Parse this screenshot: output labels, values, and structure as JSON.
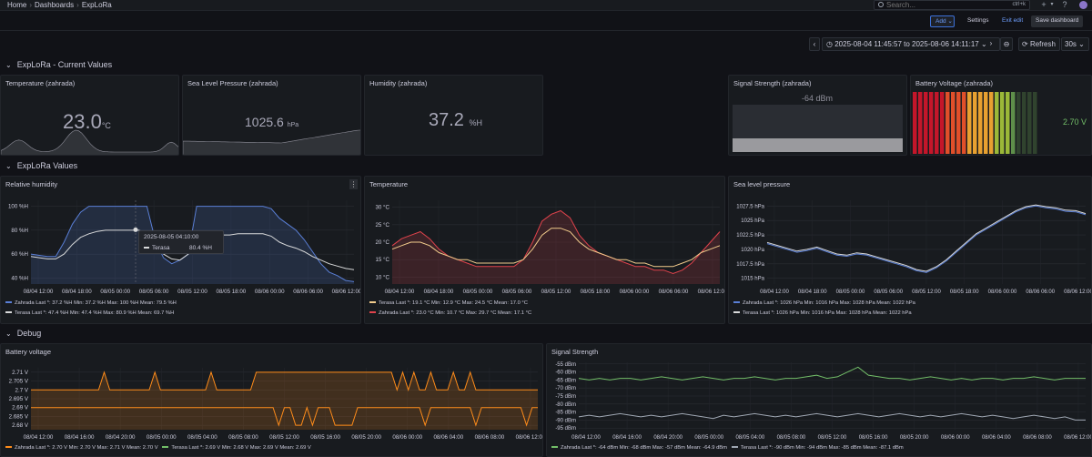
{
  "breadcrumb": {
    "home": "Home",
    "dashboards": "Dashboards",
    "current": "ExpLoRa"
  },
  "search": {
    "placeholder": "Search...",
    "shortcut": "ctrl+k"
  },
  "toolbar": {
    "add": "Add",
    "settings": "Settings",
    "exit_edit": "Exit edit",
    "save": "Save dashboard"
  },
  "timepicker": {
    "range": "2025-08-04 11:45:57 to 2025-08-06 14:11:17",
    "refresh": "Refresh",
    "interval": "30s"
  },
  "sections": {
    "current": "ExpLoRa - Current Values",
    "values": "ExpLoRa Values",
    "debug": "Debug"
  },
  "stats": {
    "temperature": {
      "title": "Temperature (zahrada)",
      "value": "23.0",
      "unit": "°C"
    },
    "pressure": {
      "title": "Sea Level Pressure (zahrada)",
      "value": "1025.6",
      "unit": "hPa"
    },
    "humidity": {
      "title": "Humidity (zahrada)",
      "value": "37.2",
      "unit": "%H"
    },
    "signal": {
      "title": "Signal Strength (zahrada)",
      "value": "-64 dBm",
      "min": -120,
      "max": 0,
      "reading": -64
    },
    "battery": {
      "title": "Battery Voltage (zahrada)",
      "value": "2.70 V",
      "min": 0,
      "max": 3.3,
      "reading": 2.7
    }
  },
  "colors": {
    "zahrada_blue": "#5a7fd6",
    "terasa_white": "#d8d9da",
    "yellow": "#f2cc8c",
    "red": "#e0434c",
    "orange": "#ff8c1a",
    "green": "#73bf69",
    "gray": "#9fa7b3"
  },
  "panels": {
    "humidity": {
      "title": "Relative humidity",
      "tooltip": {
        "time": "2025-08-05 04:10:00",
        "series": "Terasa",
        "value": "80.4 %H"
      },
      "legend": [
        "Zahrada  Last *: 37.2 %H  Min: 37.2 %H  Max: 100 %H  Mean: 79.5 %H",
        "Terasa  Last *: 47.4 %H  Min: 47.4 %H  Max: 80.9 %H  Mean: 69.7 %H"
      ]
    },
    "temperature": {
      "title": "Temperature",
      "legend": [
        "Terasa  Last *: 19.1 °C  Min: 12.9 °C  Max: 24.5 °C  Mean: 17.0 °C",
        "Zahrada  Last *: 23.0 °C  Min: 10.7 °C  Max: 29.7 °C  Mean: 17.1 °C"
      ]
    },
    "pressure": {
      "title": "Sea level pressure",
      "legend": [
        "Zahrada  Last *: 1026 hPa  Min: 1016 hPa  Max: 1028 hPa  Mean: 1022 hPa",
        "Terasa  Last *: 1026 hPa  Min: 1016 hPa  Max: 1028 hPa  Mean: 1022 hPa"
      ]
    },
    "battery": {
      "title": "Battery voltage",
      "legend": "Zahrada  Last *: 2.70 V  Min: 2.70 V  Max: 2.71 V  Mean: 2.70 V",
      "legend2": "Terasa  Last *: 2.69 V  Min: 2.68 V  Max: 2.69 V  Mean: 2.69 V"
    },
    "signal": {
      "title": "Signal Strength",
      "legend": "Zahrada  Last *: -64 dBm  Min: -68 dBm  Max: -57 dBm  Mean: -64.9 dBm",
      "legend2": "Terasa  Last *: -90 dBm  Min: -94 dBm  Max: -85 dBm  Mean: -87.1 dBm"
    }
  },
  "chart_data": [
    {
      "id": "humidity",
      "type": "line",
      "title": "Relative humidity",
      "x_ticks": [
        "08/04 12:00",
        "08/04 18:00",
        "08/05 00:00",
        "08/05 06:00",
        "08/05 12:00",
        "08/05 18:00",
        "08/06 00:00",
        "08/06 06:00",
        "08/06 12:00"
      ],
      "y_ticks": [
        "40 %H",
        "60 %H",
        "80 %H",
        "100 %H"
      ],
      "ylim": [
        35,
        105
      ],
      "series": [
        {
          "name": "Zahrada",
          "color": "#5a7fd6",
          "fill": true,
          "values": [
            60,
            59,
            58,
            58,
            70,
            85,
            95,
            100,
            100,
            100,
            100,
            100,
            100,
            100,
            100,
            72,
            57,
            52,
            55,
            60,
            100,
            100,
            100,
            100,
            100,
            100,
            100,
            100,
            100,
            98,
            90,
            85,
            80,
            72,
            62,
            52,
            45,
            42,
            38,
            37
          ]
        },
        {
          "name": "Terasa",
          "color": "#d8d9da",
          "fill": false,
          "values": [
            58,
            57,
            56,
            56,
            60,
            68,
            74,
            77,
            79,
            80,
            80,
            80,
            80,
            80,
            78,
            68,
            60,
            56,
            55,
            60,
            72,
            75,
            76,
            76,
            76,
            77,
            77,
            77,
            77,
            75,
            70,
            67,
            65,
            62,
            58,
            55,
            52,
            50,
            48,
            47
          ]
        }
      ]
    },
    {
      "id": "temperature",
      "type": "line",
      "title": "Temperature",
      "x_ticks": [
        "08/04 12:00",
        "08/04 18:00",
        "08/05 00:00",
        "08/05 06:00",
        "08/05 12:00",
        "08/05 18:00",
        "08/06 00:00",
        "08/06 06:00",
        "08/06 12:00"
      ],
      "y_ticks": [
        "10 °C",
        "15 °C",
        "20 °C",
        "25 °C",
        "30 °C"
      ],
      "ylim": [
        8,
        32
      ],
      "series": [
        {
          "name": "Zahrada",
          "color": "#e0434c",
          "fill": true,
          "values": [
            19,
            21,
            22,
            23,
            21,
            18,
            16,
            15,
            14,
            13,
            13,
            13,
            13,
            13,
            15,
            20,
            26,
            28,
            29,
            27,
            22,
            19,
            17,
            16,
            15,
            14,
            13,
            13,
            12,
            12,
            11,
            12,
            14,
            17,
            20,
            23
          ]
        },
        {
          "name": "Terasa",
          "color": "#f2cc8c",
          "fill": false,
          "values": [
            18,
            19,
            20,
            20,
            19,
            17,
            16,
            15,
            15,
            14,
            14,
            14,
            14,
            14,
            15,
            18,
            22,
            24,
            24,
            23,
            20,
            18,
            17,
            16,
            15,
            15,
            14,
            14,
            13,
            13,
            13,
            14,
            15,
            17,
            18,
            19
          ]
        }
      ]
    },
    {
      "id": "pressure",
      "type": "line",
      "title": "Sea level pressure",
      "x_ticks": [
        "08/04 12:00",
        "08/04 18:00",
        "08/05 00:00",
        "08/05 06:00",
        "08/05 12:00",
        "08/05 18:00",
        "08/06 00:00",
        "08/06 06:00",
        "08/06 12:00"
      ],
      "y_ticks": [
        "1015 hPa",
        "1017.5 hPa",
        "1020 hPa",
        "1022.5 hPa",
        "1025 hPa",
        "1027.5 hPa"
      ],
      "ylim": [
        1014,
        1028.5
      ],
      "series": [
        {
          "name": "Zahrada",
          "color": "#5a7fd6",
          "fill": false,
          "values": [
            1021,
            1020.5,
            1020,
            1019.5,
            1019.8,
            1020.2,
            1019.6,
            1019,
            1018.8,
            1019.2,
            1019,
            1018.5,
            1018,
            1017.5,
            1017,
            1016.3,
            1016,
            1016.8,
            1018,
            1019.5,
            1021,
            1022.5,
            1023.5,
            1024.5,
            1025.5,
            1026.5,
            1027.2,
            1027.5,
            1027.2,
            1027,
            1026.6,
            1026.5,
            1026
          ]
        },
        {
          "name": "Terasa",
          "color": "#d8d9da",
          "fill": false,
          "values": [
            1021.2,
            1020.7,
            1020.2,
            1019.7,
            1020,
            1020.4,
            1019.8,
            1019.2,
            1019,
            1019.4,
            1019.2,
            1018.7,
            1018.2,
            1017.7,
            1017.2,
            1016.5,
            1016.2,
            1017,
            1018.2,
            1019.7,
            1021.2,
            1022.7,
            1023.7,
            1024.7,
            1025.7,
            1026.7,
            1027.4,
            1027.7,
            1027.4,
            1027.2,
            1026.8,
            1026.7,
            1026.2
          ]
        }
      ]
    },
    {
      "id": "battery",
      "type": "line",
      "title": "Battery voltage",
      "x_ticks": [
        "08/04 12:00",
        "08/04 16:00",
        "08/04 20:00",
        "08/05 00:00",
        "08/05 04:00",
        "08/05 08:00",
        "08/05 12:00",
        "08/05 16:00",
        "08/05 20:00",
        "08/06 00:00",
        "08/06 04:00",
        "08/06 08:00",
        "08/06 12:00"
      ],
      "y_ticks": [
        "2.68 V",
        "2.685 V",
        "2.69 V",
        "2.695 V",
        "2.7 V",
        "2.705 V",
        "2.71 V"
      ],
      "ylim": [
        2.6775,
        2.7125
      ],
      "series": [
        {
          "name": "Zahrada",
          "color": "#ff8c1a",
          "fill": true,
          "values": [
            2.7,
            2.7,
            2.7,
            2.7,
            2.7,
            2.7,
            2.7,
            2.7,
            2.7,
            2.7,
            2.7,
            2.7,
            2.7,
            2.71,
            2.7,
            2.7,
            2.7,
            2.7,
            2.7,
            2.7,
            2.7,
            2.7,
            2.71,
            2.7,
            2.7,
            2.7,
            2.7,
            2.7,
            2.7,
            2.7,
            2.7,
            2.7,
            2.71,
            2.7,
            2.7,
            2.7,
            2.7,
            2.7,
            2.7,
            2.7,
            2.71,
            2.71,
            2.71,
            2.71,
            2.71,
            2.71,
            2.71,
            2.71,
            2.71,
            2.71,
            2.71,
            2.71,
            2.71,
            2.71,
            2.71,
            2.71,
            2.71,
            2.71,
            2.71,
            2.71,
            2.71,
            2.71,
            2.71,
            2.71,
            2.71,
            2.7,
            2.71,
            2.7,
            2.71,
            2.7,
            2.7,
            2.71,
            2.7,
            2.7,
            2.7,
            2.71,
            2.7,
            2.7,
            2.71,
            2.7,
            2.7,
            2.7,
            2.7,
            2.7,
            2.7,
            2.7,
            2.7,
            2.7,
            2.7,
            2.7,
            2.7
          ]
        },
        {
          "name": "Terasa",
          "color": "#ff8c1a",
          "fill": false,
          "values": [
            2.69,
            2.69,
            2.69,
            2.69,
            2.69,
            2.69,
            2.69,
            2.69,
            2.69,
            2.69,
            2.69,
            2.69,
            2.69,
            2.69,
            2.69,
            2.69,
            2.69,
            2.69,
            2.69,
            2.69,
            2.69,
            2.69,
            2.69,
            2.69,
            2.69,
            2.69,
            2.69,
            2.69,
            2.69,
            2.69,
            2.69,
            2.69,
            2.69,
            2.69,
            2.69,
            2.69,
            2.69,
            2.69,
            2.69,
            2.69,
            2.69,
            2.69,
            2.69,
            2.69,
            2.68,
            2.69,
            2.69,
            2.68,
            2.68,
            2.69,
            2.68,
            2.69,
            2.69,
            2.69,
            2.68,
            2.68,
            2.68,
            2.68,
            2.69,
            2.69,
            2.69,
            2.69,
            2.69,
            2.69,
            2.69,
            2.69,
            2.69,
            2.69,
            2.69,
            2.69,
            2.68,
            2.69,
            2.69,
            2.69,
            2.69,
            2.69,
            2.69,
            2.69,
            2.69,
            2.68,
            2.69,
            2.69,
            2.69,
            2.69,
            2.69,
            2.69,
            2.69,
            2.69,
            2.68,
            2.69,
            2.69
          ]
        }
      ]
    },
    {
      "id": "signal",
      "type": "line",
      "title": "Signal Strength",
      "x_ticks": [
        "08/04 12:00",
        "08/04 16:00",
        "08/04 20:00",
        "08/05 00:00",
        "08/05 04:00",
        "08/05 08:00",
        "08/05 12:00",
        "08/05 16:00",
        "08/05 20:00",
        "08/06 00:00",
        "08/06 04:00",
        "08/06 08:00",
        "08/06 12:00"
      ],
      "y_ticks": [
        "-95 dBm",
        "-90 dBm",
        "-85 dBm",
        "-80 dBm",
        "-75 dBm",
        "-70 dBm",
        "-65 dBm",
        "-60 dBm",
        "-55 dBm"
      ],
      "ylim": [
        -96,
        -54
      ],
      "series": [
        {
          "name": "Zahrada",
          "color": "#73bf69",
          "fill": false,
          "values": [
            -64,
            -65,
            -64,
            -65,
            -64,
            -64,
            -65,
            -64,
            -63,
            -64,
            -65,
            -64,
            -63,
            -64,
            -65,
            -64,
            -64,
            -63,
            -64,
            -65,
            -64,
            -64,
            -63,
            -62,
            -64,
            -63,
            -60,
            -57,
            -62,
            -63,
            -64,
            -64,
            -65,
            -64,
            -63,
            -64,
            -65,
            -64,
            -65,
            -64,
            -64,
            -65,
            -64,
            -64,
            -63,
            -64,
            -65,
            -64,
            -64,
            -64
          ]
        },
        {
          "name": "Terasa",
          "color": "#9fa7b3",
          "fill": false,
          "values": [
            -88,
            -87,
            -88,
            -87,
            -86,
            -87,
            -88,
            -87,
            -88,
            -87,
            -86,
            -87,
            -88,
            -89,
            -87,
            -88,
            -87,
            -86,
            -87,
            -88,
            -87,
            -88,
            -87,
            -86,
            -87,
            -88,
            -87,
            -86,
            -87,
            -88,
            -87,
            -86,
            -87,
            -88,
            -87,
            -88,
            -87,
            -86,
            -87,
            -88,
            -87,
            -88,
            -89,
            -88,
            -87,
            -88,
            -89,
            -88,
            -90,
            -90
          ]
        }
      ]
    }
  ]
}
